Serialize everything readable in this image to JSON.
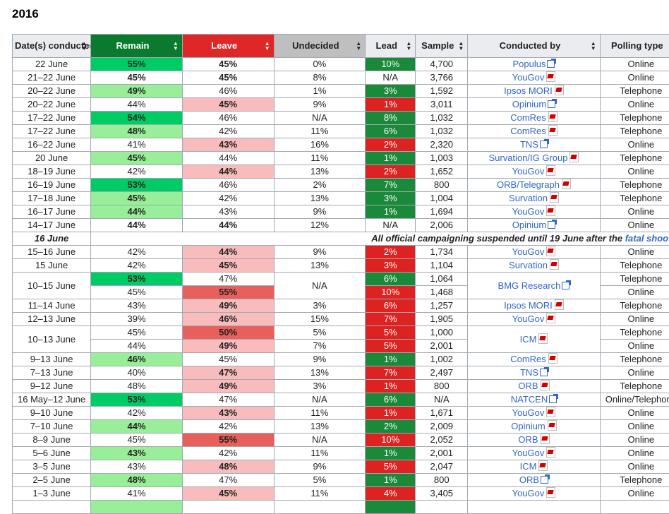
{
  "year": "2016",
  "headers": [
    "Date(s) conducted",
    "Remain",
    "Leave",
    "Undecided",
    "Lead",
    "Sample",
    "Conducted by",
    "Polling type"
  ],
  "notice": {
    "date": "16 June",
    "text": "All official campaigning suspended until 19 June after the ",
    "link": "fatal shootin"
  },
  "rows_top": [
    {
      "d": "22 June",
      "r": "55%",
      "rc": "g1",
      "rb": 1,
      "l": "45%",
      "lc": "",
      "lb": 1,
      "u": "0%",
      "ld": "10%",
      "ldc": "ldg",
      "s": "4,700",
      "by": "Populus",
      "ic": "ext",
      "t": "Online"
    },
    {
      "d": "21–22 June",
      "r": "45%",
      "rc": "",
      "rb": 1,
      "l": "45%",
      "lc": "",
      "lb": 1,
      "u": "8%",
      "ld": "N/A",
      "ldc": "",
      "s": "3,766",
      "by": "YouGov",
      "ic": "pdf",
      "t": "Online"
    },
    {
      "d": "20–22 June",
      "r": "49%",
      "rc": "g2",
      "rb": 1,
      "l": "46%",
      "lc": "",
      "lb": 0,
      "u": "1%",
      "ld": "3%",
      "ldc": "ldg",
      "s": "1,592",
      "by": "Ipsos MORI",
      "ic": "pdf",
      "t": "Telephone"
    },
    {
      "d": "20–22 June",
      "r": "44%",
      "rc": "",
      "rb": 0,
      "l": "45%",
      "lc": "p1",
      "lb": 1,
      "u": "9%",
      "ld": "1%",
      "ldc": "ldr",
      "s": "3,011",
      "by": "Opinium",
      "ic": "ext",
      "t": "Online"
    },
    {
      "d": "17–22 June",
      "r": "54%",
      "rc": "g1",
      "rb": 1,
      "l": "46%",
      "lc": "",
      "lb": 0,
      "u": "N/A",
      "ld": "8%",
      "ldc": "ldg",
      "s": "1,032",
      "by": "ComRes",
      "ic": "pdf",
      "t": "Telephone"
    },
    {
      "d": "17–22 June",
      "r": "48%",
      "rc": "g2",
      "rb": 1,
      "l": "42%",
      "lc": "",
      "lb": 0,
      "u": "11%",
      "ld": "6%",
      "ldc": "ldg",
      "s": "1,032",
      "by": "ComRes",
      "ic": "pdf",
      "t": "Telephone"
    },
    {
      "d": "16–22 June",
      "r": "41%",
      "rc": "",
      "rb": 0,
      "l": "43%",
      "lc": "p1",
      "lb": 1,
      "u": "16%",
      "ld": "2%",
      "ldc": "ldr",
      "s": "2,320",
      "by": "TNS",
      "ic": "ext",
      "t": "Online"
    },
    {
      "d": "20 June",
      "r": "45%",
      "rc": "g2",
      "rb": 1,
      "l": "44%",
      "lc": "",
      "lb": 0,
      "u": "11%",
      "ld": "1%",
      "ldc": "ldg",
      "s": "1,003",
      "by": "Survation/IG Group",
      "ic": "pdf",
      "t": "Telephone"
    },
    {
      "d": "18–19 June",
      "r": "42%",
      "rc": "",
      "rb": 0,
      "l": "44%",
      "lc": "p1",
      "lb": 1,
      "u": "13%",
      "ld": "2%",
      "ldc": "ldr",
      "s": "1,652",
      "by": "YouGov",
      "ic": "pdf",
      "t": "Online"
    },
    {
      "d": "16–19 June",
      "r": "53%",
      "rc": "g1",
      "rb": 1,
      "l": "46%",
      "lc": "",
      "lb": 0,
      "u": "2%",
      "ld": "7%",
      "ldc": "ldg",
      "s": "800",
      "by": "ORB/Telegraph",
      "ic": "pdf",
      "t": "Telephone"
    },
    {
      "d": "17–18 June",
      "r": "45%",
      "rc": "g2",
      "rb": 1,
      "l": "42%",
      "lc": "",
      "lb": 0,
      "u": "13%",
      "ld": "3%",
      "ldc": "ldg",
      "s": "1,004",
      "by": "Survation",
      "ic": "pdf",
      "t": "Telephone"
    },
    {
      "d": "16–17 June",
      "r": "44%",
      "rc": "g2",
      "rb": 1,
      "l": "43%",
      "lc": "",
      "lb": 0,
      "u": "9%",
      "ld": "1%",
      "ldc": "ldg",
      "s": "1,694",
      "by": "YouGov",
      "ic": "pdf",
      "t": "Online"
    },
    {
      "d": "14–17 June",
      "r": "44%",
      "rc": "",
      "rb": 1,
      "l": "44%",
      "lc": "",
      "lb": 1,
      "u": "12%",
      "ld": "N/A",
      "ldc": "",
      "s": "2,006",
      "by": "Opinium",
      "ic": "ext",
      "t": "Online"
    }
  ],
  "rows_bottom_a": [
    {
      "d": "15–16 June",
      "r": "42%",
      "rc": "",
      "rb": 0,
      "l": "44%",
      "lc": "p1",
      "lb": 1,
      "u": "9%",
      "ld": "2%",
      "ldc": "ldr",
      "s": "1,734",
      "by": "YouGov",
      "ic": "pdf",
      "t": "Online"
    },
    {
      "d": "15 June",
      "r": "42%",
      "rc": "",
      "rb": 0,
      "l": "45%",
      "lc": "p1",
      "lb": 1,
      "u": "13%",
      "ld": "3%",
      "ldc": "ldr",
      "s": "1,104",
      "by": "Survation",
      "ic": "pdf",
      "t": "Telephone"
    }
  ],
  "bmg": {
    "d": "10–15 June",
    "u": "N/A",
    "by": "BMG Research",
    "ic": "ext",
    "a": {
      "r": "53%",
      "rc": "g1",
      "rb": 1,
      "l": "47%",
      "lc": "",
      "lb": 0,
      "ld": "6%",
      "ldc": "ldg",
      "s": "1,064",
      "t": "Telephone"
    },
    "b": {
      "r": "45%",
      "rc": "",
      "rb": 0,
      "l": "55%",
      "lc": "p2",
      "lb": 1,
      "ld": "10%",
      "ldc": "ldr",
      "s": "1,468",
      "t": "Online"
    }
  },
  "rows_bottom_b": [
    {
      "d": "11–14 June",
      "r": "43%",
      "rc": "",
      "rb": 0,
      "l": "49%",
      "lc": "p1",
      "lb": 1,
      "u": "3%",
      "ld": "6%",
      "ldc": "ldr",
      "s": "1,257",
      "by": "Ipsos MORI",
      "ic": "pdf",
      "t": "Telephone"
    },
    {
      "d": "12–13 June",
      "r": "39%",
      "rc": "",
      "rb": 0,
      "l": "46%",
      "lc": "p1",
      "lb": 1,
      "u": "15%",
      "ld": "7%",
      "ldc": "ldr",
      "s": "1,905",
      "by": "YouGov",
      "ic": "pdf",
      "t": "Online"
    }
  ],
  "icm": {
    "d": "10–13 June",
    "by": "ICM",
    "ic": "pdf",
    "a": {
      "r": "45%",
      "rc": "",
      "rb": 0,
      "l": "50%",
      "lc": "p2",
      "lb": 1,
      "u": "5%",
      "ld": "5%",
      "ldc": "ldr",
      "s": "1,000",
      "t": "Telephone"
    },
    "b": {
      "r": "44%",
      "rc": "",
      "rb": 0,
      "l": "49%",
      "lc": "p1",
      "lb": 1,
      "u": "7%",
      "ld": "5%",
      "ldc": "ldr",
      "s": "2,001",
      "t": "Online"
    }
  },
  "rows_bottom_c": [
    {
      "d": "9–13 June",
      "r": "46%",
      "rc": "g2",
      "rb": 1,
      "l": "45%",
      "lc": "",
      "lb": 0,
      "u": "9%",
      "ld": "1%",
      "ldc": "ldg",
      "s": "1,002",
      "by": "ComRes",
      "ic": "pdf",
      "t": "Telephone"
    },
    {
      "d": "7–13 June",
      "r": "40%",
      "rc": "",
      "rb": 0,
      "l": "47%",
      "lc": "p1",
      "lb": 1,
      "u": "13%",
      "ld": "7%",
      "ldc": "ldr",
      "s": "2,497",
      "by": "TNS",
      "ic": "ext",
      "t": "Online"
    },
    {
      "d": "9–12 June",
      "r": "48%",
      "rc": "",
      "rb": 0,
      "l": "49%",
      "lc": "p1",
      "lb": 1,
      "u": "3%",
      "ld": "1%",
      "ldc": "ldr",
      "s": "800",
      "by": "ORB",
      "ic": "pdf",
      "t": "Telephone"
    },
    {
      "d": "16 May–12 June",
      "r": "53%",
      "rc": "g1",
      "rb": 1,
      "l": "47%",
      "lc": "",
      "lb": 0,
      "u": "N/A",
      "ld": "6%",
      "ldc": "ldg",
      "s": "N/A",
      "by": "NATCEN",
      "ic": "ext",
      "t": "Online/Telephone"
    },
    {
      "d": "9–10 June",
      "r": "42%",
      "rc": "",
      "rb": 0,
      "l": "43%",
      "lc": "p1",
      "lb": 1,
      "u": "11%",
      "ld": "1%",
      "ldc": "ldr",
      "s": "1,671",
      "by": "YouGov",
      "ic": "pdf",
      "t": "Online"
    },
    {
      "d": "7–10 June",
      "r": "44%",
      "rc": "g2",
      "rb": 1,
      "l": "42%",
      "lc": "",
      "lb": 0,
      "u": "13%",
      "ld": "2%",
      "ldc": "ldg",
      "s": "2,009",
      "by": "Opinium",
      "ic": "pdf",
      "t": "Online"
    },
    {
      "d": "8–9 June",
      "r": "45%",
      "rc": "",
      "rb": 0,
      "l": "55%",
      "lc": "p2",
      "lb": 1,
      "u": "N/A",
      "ld": "10%",
      "ldc": "ldr",
      "s": "2,052",
      "by": "ORB",
      "ic": "pdf",
      "t": "Online"
    },
    {
      "d": "5–6 June",
      "r": "43%",
      "rc": "g2",
      "rb": 1,
      "l": "42%",
      "lc": "",
      "lb": 0,
      "u": "11%",
      "ld": "1%",
      "ldc": "ldg",
      "s": "2,001",
      "by": "YouGov",
      "ic": "pdf",
      "t": "Online"
    },
    {
      "d": "3–5 June",
      "r": "43%",
      "rc": "",
      "rb": 0,
      "l": "48%",
      "lc": "p1",
      "lb": 1,
      "u": "9%",
      "ld": "5%",
      "ldc": "ldr",
      "s": "2,047",
      "by": "ICM",
      "ic": "pdf",
      "t": "Online"
    },
    {
      "d": "2–5 June",
      "r": "48%",
      "rc": "g2",
      "rb": 1,
      "l": "47%",
      "lc": "",
      "lb": 0,
      "u": "5%",
      "ld": "1%",
      "ldc": "ldg",
      "s": "800",
      "by": "ORB",
      "ic": "ext",
      "t": "Telephone"
    },
    {
      "d": "1–3 June",
      "r": "41%",
      "rc": "",
      "rb": 0,
      "l": "45%",
      "lc": "p1",
      "lb": 1,
      "u": "11%",
      "ld": "4%",
      "ldc": "ldr",
      "s": "3,405",
      "by": "YouGov",
      "ic": "pdf",
      "t": "Online"
    },
    {
      "d": "",
      "r": "",
      "rc": "g2",
      "rb": 0,
      "l": "",
      "lc": "",
      "lb": 0,
      "u": "",
      "ld": "",
      "ldc": "ldg",
      "s": "",
      "by": "",
      "ic": "",
      "t": ""
    }
  ]
}
